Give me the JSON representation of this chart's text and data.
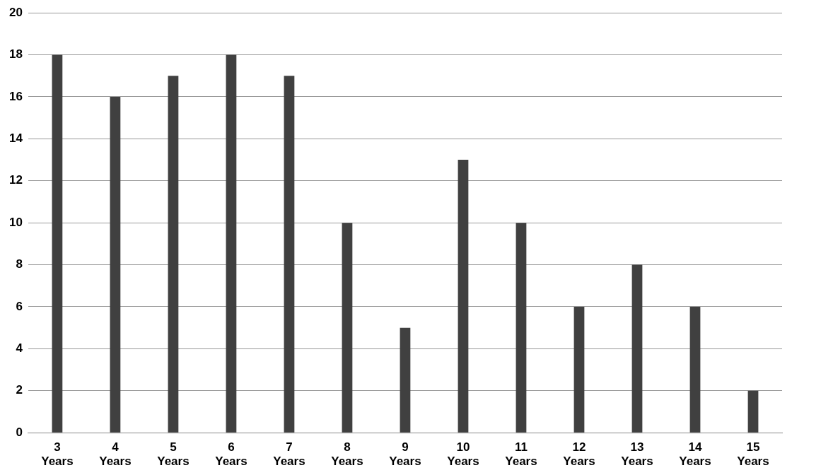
{
  "chart_data": {
    "type": "bar",
    "categories": [
      "3 Years",
      "4 Years",
      "5 Years",
      "6 Years",
      "7 Years",
      "8 Years",
      "9 Years",
      "10 Years",
      "11 Years",
      "12 Years",
      "13 Years",
      "14 Years",
      "15 Years"
    ],
    "values": [
      18,
      16,
      17,
      18,
      17,
      10,
      5,
      13,
      10,
      6,
      8,
      6,
      2
    ],
    "color": "#404040",
    "ylim": [
      0,
      20
    ],
    "yticks": [
      0,
      2,
      4,
      6,
      8,
      10,
      12,
      14,
      16,
      18,
      20
    ],
    "grid": "y"
  }
}
